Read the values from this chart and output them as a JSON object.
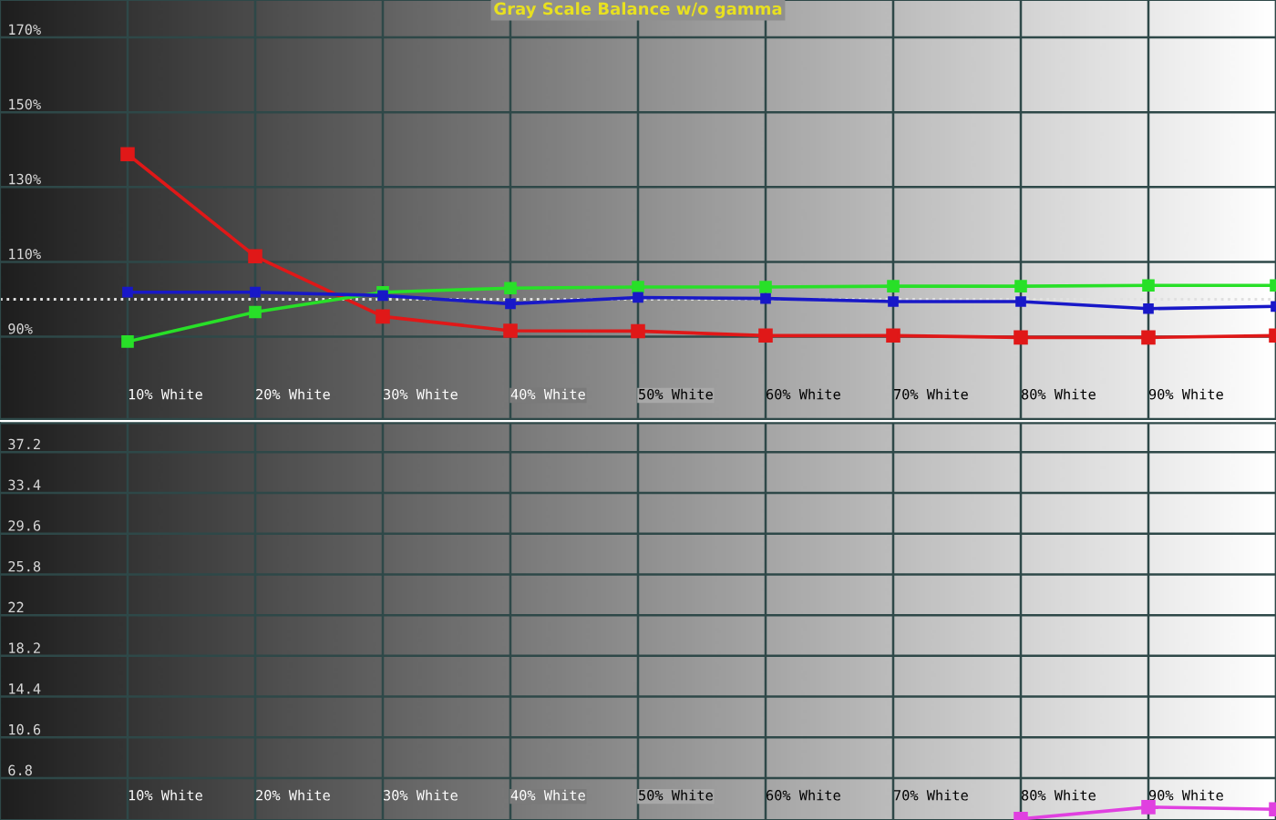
{
  "chart_data": [
    {
      "type": "line",
      "title": "Gray Scale Balance w/o gamma",
      "categories": [
        "10% White",
        "20% White",
        "30% White",
        "40% White",
        "50% White",
        "60% White",
        "70% White",
        "80% White",
        "90% White",
        null
      ],
      "series": [
        {
          "color": "#e01818",
          "values": [
            138.8,
            111.5,
            95.4,
            91.6,
            91.5,
            90.3,
            90.3,
            89.8,
            89.8,
            90.3
          ]
        },
        {
          "color": "#28e028",
          "values": [
            88.7,
            96.6,
            101.9,
            103.0,
            103.3,
            103.3,
            103.5,
            103.5,
            103.7,
            103.7
          ]
        },
        {
          "color": "#1818c8",
          "values": [
            101.9,
            101.9,
            101.0,
            98.8,
            100.5,
            100.2,
            99.4,
            99.4,
            97.5,
            98.1
          ]
        }
      ],
      "ylim": [
        68,
        180
      ],
      "yticks": [
        {
          "value": 90,
          "label": "90%"
        },
        {
          "value": 110,
          "label": "110%"
        },
        {
          "value": 130,
          "label": "130%"
        },
        {
          "value": 150,
          "label": "150%"
        },
        {
          "value": 170,
          "label": "170%"
        }
      ],
      "ref_lines": [
        {
          "axis": "y",
          "value": 100,
          "color": "#e0e0e0",
          "line_style": "dotted"
        }
      ],
      "grid": true,
      "marker": "square",
      "line_style": "solid"
    },
    {
      "type": "line",
      "categories": [
        "10% White",
        "20% White",
        "30% White",
        "40% White",
        "50% White",
        "60% White",
        "70% White",
        "80% White",
        "90% White",
        null
      ],
      "series": [
        {
          "color": "#e040e0",
          "values": [
            null,
            null,
            null,
            null,
            null,
            null,
            null,
            3.0,
            4.1,
            3.9
          ]
        }
      ],
      "ylim": [
        2.9,
        39.9
      ],
      "yticks": [
        6.8,
        10.6,
        14.4,
        18.2,
        22,
        25.8,
        29.6,
        33.4,
        37.2
      ],
      "grid": true,
      "marker": "square",
      "line_style": "solid"
    }
  ]
}
